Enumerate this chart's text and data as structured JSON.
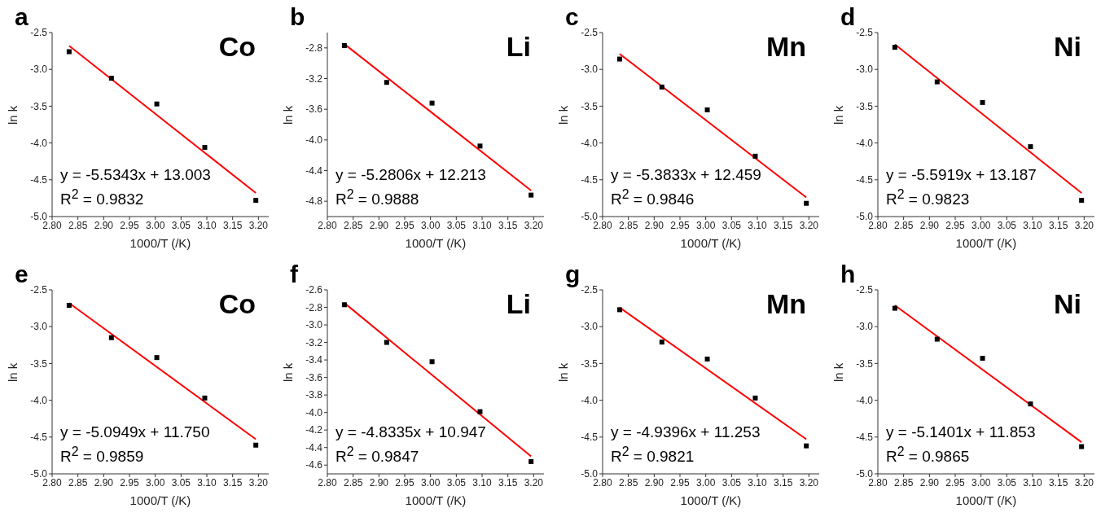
{
  "chart_data": [
    {
      "type": "scatter",
      "title": "a",
      "xlabel": "1000/T (/K)",
      "ylabel": "ln k",
      "xlim": [
        2.8,
        3.22
      ],
      "xticks": [
        {
          "value": 2.8,
          "label": "2.80"
        },
        2.85,
        {
          "value": 2.9,
          "label": "2.90"
        },
        2.95,
        {
          "value": 3,
          "label": "3.00"
        },
        3.05,
        {
          "value": 3.1,
          "label": "3.10"
        },
        3.15,
        {
          "value": 3.2,
          "label": "3.20"
        }
      ],
      "ylim": [
        -5,
        -2.5
      ],
      "yticks": [
        {
          "value": -5,
          "label": "-5.0"
        },
        -4.5,
        {
          "value": -4,
          "label": "-4.0"
        },
        -3.5,
        {
          "value": -3,
          "label": "-3.0"
        },
        -2.5
      ],
      "annotations": [
        "Co",
        "y = -5.5343x + 13.003",
        "R$^{2}$ = 0.9832"
      ],
      "series": [
        {
          "type": "scatter",
          "color": "#000000",
          "marker": "square",
          "x": [
            2.833,
            2.915,
            3.003,
            3.096,
            3.195
          ],
          "values": [
            -2.76,
            -3.12,
            -3.47,
            -4.06,
            -4.78
          ]
        },
        {
          "type": "line",
          "color": "#ff0000",
          "marker": "none",
          "x": [
            2.833,
            3.195
          ],
          "values": [
            -2.68,
            -4.68
          ]
        }
      ]
    },
    {
      "type": "scatter",
      "title": "b",
      "xlabel": "1000/T (/K)",
      "ylabel": "ln k",
      "xlim": [
        2.8,
        3.22
      ],
      "xticks": [
        {
          "value": 2.8,
          "label": "2.80"
        },
        2.85,
        {
          "value": 2.9,
          "label": "2.90"
        },
        2.95,
        {
          "value": 3,
          "label": "3.00"
        },
        3.05,
        {
          "value": 3.1,
          "label": "3.10"
        },
        3.15,
        {
          "value": 3.2,
          "label": "3.20"
        }
      ],
      "ylim": [
        -5,
        -2.6
      ],
      "yticks": [
        -4.8,
        -4.4,
        {
          "value": -4,
          "label": "-4.0"
        },
        -3.6,
        -3.2,
        -2.8
      ],
      "annotations": [
        "Li",
        "y = -5.2806x + 12.213",
        "R$^{2}$ = 0.9888"
      ],
      "series": [
        {
          "type": "scatter",
          "color": "#000000",
          "marker": "square",
          "x": [
            2.833,
            2.915,
            3.003,
            3.096,
            3.195
          ],
          "values": [
            -2.77,
            -3.25,
            -3.52,
            -4.08,
            -4.72
          ]
        },
        {
          "type": "line",
          "color": "#ff0000",
          "marker": "none",
          "x": [
            2.833,
            3.195
          ],
          "values": [
            -2.75,
            -4.66
          ]
        }
      ]
    },
    {
      "type": "scatter",
      "title": "c",
      "xlabel": "1000/T (/K)",
      "ylabel": "ln k",
      "xlim": [
        2.8,
        3.22
      ],
      "xticks": [
        {
          "value": 2.8,
          "label": "2.80"
        },
        2.85,
        {
          "value": 2.9,
          "label": "2.90"
        },
        2.95,
        {
          "value": 3,
          "label": "3.00"
        },
        3.05,
        {
          "value": 3.1,
          "label": "3.10"
        },
        3.15,
        {
          "value": 3.2,
          "label": "3.20"
        }
      ],
      "ylim": [
        -5,
        -2.5
      ],
      "yticks": [
        {
          "value": -5,
          "label": "-5.0"
        },
        -4.5,
        {
          "value": -4,
          "label": "-4.0"
        },
        -3.5,
        {
          "value": -3,
          "label": "-3.0"
        },
        -2.5
      ],
      "annotations": [
        "Mn",
        "y = -5.3833x + 12.459",
        "R$^{2}$ = 0.9846"
      ],
      "series": [
        {
          "type": "scatter",
          "color": "#000000",
          "marker": "square",
          "x": [
            2.833,
            2.915,
            3.003,
            3.096,
            3.195
          ],
          "values": [
            -2.86,
            -3.24,
            -3.55,
            -4.18,
            -4.82
          ]
        },
        {
          "type": "line",
          "color": "#ff0000",
          "marker": "none",
          "x": [
            2.833,
            3.195
          ],
          "values": [
            -2.79,
            -4.74
          ]
        }
      ]
    },
    {
      "type": "scatter",
      "title": "d",
      "xlabel": "1000/T (/K)",
      "ylabel": "ln k",
      "xlim": [
        2.8,
        3.22
      ],
      "xticks": [
        {
          "value": 2.8,
          "label": "2.80"
        },
        2.85,
        {
          "value": 2.9,
          "label": "2.90"
        },
        2.95,
        {
          "value": 3,
          "label": "3.00"
        },
        3.05,
        {
          "value": 3.1,
          "label": "3.10"
        },
        3.15,
        {
          "value": 3.2,
          "label": "3.20"
        }
      ],
      "ylim": [
        -5,
        -2.5
      ],
      "yticks": [
        {
          "value": -5,
          "label": "-5.0"
        },
        -4.5,
        {
          "value": -4,
          "label": "-4.0"
        },
        -3.5,
        {
          "value": -3,
          "label": "-3.0"
        },
        -2.5
      ],
      "annotations": [
        "Ni",
        "y = -5.5919x + 13.187",
        "R$^{2}$ = 0.9823"
      ],
      "series": [
        {
          "type": "scatter",
          "color": "#000000",
          "marker": "square",
          "x": [
            2.833,
            2.915,
            3.003,
            3.096,
            3.195
          ],
          "values": [
            -2.7,
            -3.17,
            -3.45,
            -4.05,
            -4.78
          ]
        },
        {
          "type": "line",
          "color": "#ff0000",
          "marker": "none",
          "x": [
            2.833,
            3.195
          ],
          "values": [
            -2.66,
            -4.68
          ]
        }
      ]
    },
    {
      "type": "scatter",
      "title": "e",
      "xlabel": "1000/T (/K)",
      "ylabel": "ln k",
      "xlim": [
        2.8,
        3.22
      ],
      "xticks": [
        {
          "value": 2.8,
          "label": "2.80"
        },
        2.85,
        {
          "value": 2.9,
          "label": "2.90"
        },
        2.95,
        {
          "value": 3,
          "label": "3.00"
        },
        3.05,
        {
          "value": 3.1,
          "label": "3.10"
        },
        3.15,
        {
          "value": 3.2,
          "label": "3.20"
        }
      ],
      "ylim": [
        -5,
        -2.5
      ],
      "yticks": [
        {
          "value": -5,
          "label": "-5.0"
        },
        -4.5,
        {
          "value": -4,
          "label": "-4.0"
        },
        -3.5,
        {
          "value": -3,
          "label": "-3.0"
        },
        -2.5
      ],
      "annotations": [
        "Co",
        "y = -5.0949x + 11.750",
        "R$^{2}$ = 0.9859"
      ],
      "series": [
        {
          "type": "scatter",
          "color": "#000000",
          "marker": "square",
          "x": [
            2.833,
            2.915,
            3.003,
            3.096,
            3.195
          ],
          "values": [
            -2.71,
            -3.15,
            -3.42,
            -3.97,
            -4.61
          ]
        },
        {
          "type": "line",
          "color": "#ff0000",
          "marker": "none",
          "x": [
            2.833,
            3.195
          ],
          "values": [
            -2.68,
            -4.53
          ]
        }
      ]
    },
    {
      "type": "scatter",
      "title": "f",
      "xlabel": "1000/T (/K)",
      "ylabel": "ln k",
      "xlim": [
        2.8,
        3.22
      ],
      "xticks": [
        {
          "value": 2.8,
          "label": "2.80"
        },
        2.85,
        {
          "value": 2.9,
          "label": "2.90"
        },
        2.95,
        {
          "value": 3,
          "label": "3.00"
        },
        3.05,
        {
          "value": 3.1,
          "label": "3.10"
        },
        3.15,
        {
          "value": 3.2,
          "label": "3.20"
        }
      ],
      "ylim": [
        -4.7,
        -2.6
      ],
      "yticks": [
        -4.6,
        -4.4,
        -4.2,
        {
          "value": -4,
          "label": "-4.0"
        },
        -3.8,
        -3.6,
        -3.4,
        -3.2,
        {
          "value": -3,
          "label": "-3.0"
        },
        -2.8,
        -2.6
      ],
      "annotations": [
        "Li",
        "y = -4.8335x + 10.947",
        "R$^{2}$ = 0.9847"
      ],
      "series": [
        {
          "type": "scatter",
          "color": "#000000",
          "marker": "square",
          "x": [
            2.833,
            2.915,
            3.003,
            3.096,
            3.195
          ],
          "values": [
            -2.77,
            -3.2,
            -3.42,
            -3.99,
            -4.56
          ]
        },
        {
          "type": "line",
          "color": "#ff0000",
          "marker": "none",
          "x": [
            2.833,
            3.195
          ],
          "values": [
            -2.75,
            -4.5
          ]
        }
      ]
    },
    {
      "type": "scatter",
      "title": "g",
      "xlabel": "1000/T (/K)",
      "ylabel": "ln k",
      "xlim": [
        2.8,
        3.22
      ],
      "xticks": [
        {
          "value": 2.8,
          "label": "2.80"
        },
        2.85,
        {
          "value": 2.9,
          "label": "2.90"
        },
        2.95,
        {
          "value": 3,
          "label": "3.00"
        },
        3.05,
        {
          "value": 3.1,
          "label": "3.10"
        },
        3.15,
        {
          "value": 3.2,
          "label": "3.20"
        }
      ],
      "ylim": [
        -5,
        -2.5
      ],
      "yticks": [
        {
          "value": -5,
          "label": "-5.0"
        },
        -4.5,
        {
          "value": -4,
          "label": "-4.0"
        },
        -3.5,
        {
          "value": -3,
          "label": "-3.0"
        },
        -2.5
      ],
      "annotations": [
        "Mn",
        "y = -4.9396x + 11.253",
        "R$^{2}$ = 0.9821"
      ],
      "series": [
        {
          "type": "scatter",
          "color": "#000000",
          "marker": "square",
          "x": [
            2.833,
            2.915,
            3.003,
            3.096,
            3.195
          ],
          "values": [
            -2.77,
            -3.21,
            -3.44,
            -3.97,
            -4.62
          ]
        },
        {
          "type": "line",
          "color": "#ff0000",
          "marker": "none",
          "x": [
            2.833,
            3.195
          ],
          "values": [
            -2.74,
            -4.53
          ]
        }
      ]
    },
    {
      "type": "scatter",
      "title": "h",
      "xlabel": "1000/T (/K)",
      "ylabel": "ln k",
      "xlim": [
        2.8,
        3.22
      ],
      "xticks": [
        {
          "value": 2.8,
          "label": "2.80"
        },
        2.85,
        {
          "value": 2.9,
          "label": "2.90"
        },
        2.95,
        {
          "value": 3,
          "label": "3.00"
        },
        3.05,
        {
          "value": 3.1,
          "label": "3.10"
        },
        3.15,
        {
          "value": 3.2,
          "label": "3.20"
        }
      ],
      "ylim": [
        -5,
        -2.5
      ],
      "yticks": [
        {
          "value": -5,
          "label": "-5.0"
        },
        -4.5,
        {
          "value": -4,
          "label": "-4.0"
        },
        -3.5,
        {
          "value": -3,
          "label": "-3.0"
        },
        -2.5
      ],
      "annotations": [
        "Ni",
        "y = -5.1401x + 11.853",
        "R$^{2}$ = 0.9865"
      ],
      "series": [
        {
          "type": "scatter",
          "color": "#000000",
          "marker": "square",
          "x": [
            2.833,
            2.915,
            3.003,
            3.096,
            3.195
          ],
          "values": [
            -2.75,
            -3.17,
            -3.43,
            -4.05,
            -4.63
          ]
        },
        {
          "type": "line",
          "color": "#ff0000",
          "marker": "none",
          "x": [
            2.833,
            3.195
          ],
          "values": [
            -2.71,
            -4.57
          ]
        }
      ]
    }
  ]
}
